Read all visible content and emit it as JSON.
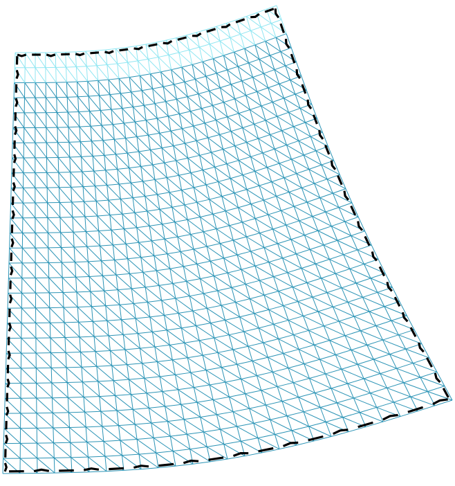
{
  "figure": {
    "type": "triangulated-mesh",
    "mesh": {
      "rows": 28,
      "cols": 26,
      "diagonal": "top-left-to-bottom-right"
    },
    "boundary_markers": {
      "style": "dashed-arrow-segments"
    },
    "colors": {
      "mesh_main": "#2a93b5",
      "mesh_top_fade": "#8fe6f2",
      "boundary": "#000000",
      "background": "#ffffff"
    }
  }
}
